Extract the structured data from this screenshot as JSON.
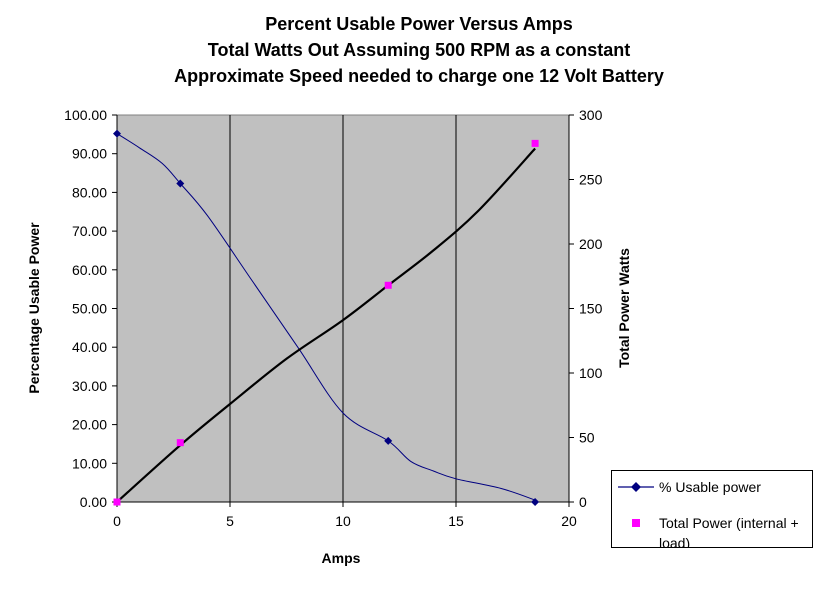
{
  "chart_data": {
    "type": "line",
    "title": "Percent Usable Power Versus Amps",
    "subtitle": "Total Watts Out Assuming 500 RPM as a constant",
    "subtitle2": "Approximate Speed needed to charge one 12 Volt Battery",
    "xlabel": "Amps",
    "ylabel": "Percentage Usable Power",
    "y2label": "Total Power Watts",
    "xlim": [
      0,
      20
    ],
    "ylim": [
      0,
      100
    ],
    "y2lim": [
      0,
      300
    ],
    "x_ticks": [
      "0",
      "5",
      "10",
      "15",
      "20"
    ],
    "y_ticks": [
      "0.00",
      "10.00",
      "20.00",
      "30.00",
      "40.00",
      "50.00",
      "60.00",
      "70.00",
      "80.00",
      "90.00",
      "100.00"
    ],
    "y2_ticks": [
      "0",
      "50",
      "100",
      "150",
      "200",
      "250",
      "300"
    ],
    "grid": "vertical",
    "plot_background": "#c0c0c0",
    "legend_position": "bottom-right",
    "series": [
      {
        "name": "% Usable power",
        "axis": "left",
        "color": "#000080",
        "marker": "diamond",
        "x": [
          0,
          2.8,
          12,
          18.5
        ],
        "values": [
          95.2,
          82.3,
          15.8,
          0
        ]
      },
      {
        "name": "Total Power (internal + load)",
        "axis": "right",
        "color": "#ff00ff",
        "marker": "square",
        "x": [
          0,
          2.8,
          12,
          18.5
        ],
        "values": [
          0,
          46,
          168,
          278
        ]
      }
    ],
    "curves": [
      {
        "series": "% Usable power",
        "color": "#000080",
        "x": [
          0,
          1,
          2,
          2.8,
          4,
          6,
          8,
          10,
          12,
          13,
          14,
          15,
          17,
          18.5
        ],
        "values": [
          95.2,
          91.5,
          87.5,
          82.3,
          74,
          57,
          40,
          23,
          15.8,
          10.5,
          8,
          6,
          3.5,
          0.5
        ]
      },
      {
        "series": "Total Power (internal + load)",
        "color": "#000000",
        "x": [
          0,
          2.8,
          5,
          7.5,
          10,
          12,
          14,
          16,
          18.5
        ],
        "values": [
          0,
          44,
          76,
          111,
          141,
          168,
          195,
          226,
          274
        ]
      }
    ]
  }
}
